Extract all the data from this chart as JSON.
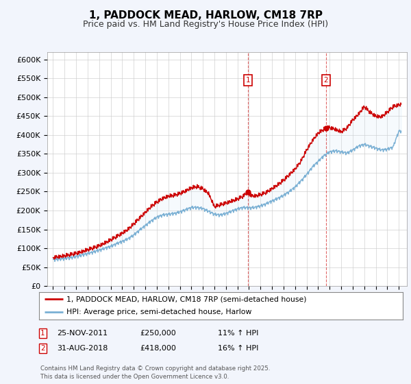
{
  "title": "1, PADDOCK MEAD, HARLOW, CM18 7RP",
  "subtitle": "Price paid vs. HM Land Registry's House Price Index (HPI)",
  "ylim": [
    0,
    620000
  ],
  "yticks": [
    0,
    50000,
    100000,
    150000,
    200000,
    250000,
    300000,
    350000,
    400000,
    450000,
    500000,
    550000,
    600000
  ],
  "ytick_labels": [
    "£0",
    "£50K",
    "£100K",
    "£150K",
    "£200K",
    "£250K",
    "£300K",
    "£350K",
    "£400K",
    "£450K",
    "£500K",
    "£550K",
    "£600K"
  ],
  "line1_color": "#cc0000",
  "line2_color": "#7ab0d4",
  "fill_color": "#d0e4f7",
  "background_color": "#f2f5fc",
  "plot_bg_color": "#ffffff",
  "grid_color": "#cccccc",
  "legend1_label": "1, PADDOCK MEAD, HARLOW, CM18 7RP (semi-detached house)",
  "legend2_label": "HPI: Average price, semi-detached house, Harlow",
  "event1_date": "25-NOV-2011",
  "event1_price": "£250,000",
  "event1_hpi": "11% ↑ HPI",
  "event2_date": "31-AUG-2018",
  "event2_price": "£418,000",
  "event2_hpi": "16% ↑ HPI",
  "footer": "Contains HM Land Registry data © Crown copyright and database right 2025.\nThis data is licensed under the Open Government Licence v3.0.",
  "event1_x": 2011.92,
  "event2_x": 2018.67,
  "event1_y_price": 250000,
  "event2_y_price": 418000,
  "xlim_start": 1994.5,
  "xlim_end": 2025.7,
  "hpi_t": [
    1995.0,
    1995.5,
    1996.0,
    1996.5,
    1997.0,
    1997.5,
    1998.0,
    1998.5,
    1999.0,
    1999.5,
    2000.0,
    2000.5,
    2001.0,
    2001.5,
    2002.0,
    2002.5,
    2003.0,
    2003.5,
    2004.0,
    2004.5,
    2005.0,
    2005.5,
    2006.0,
    2006.5,
    2007.0,
    2007.5,
    2008.0,
    2008.5,
    2009.0,
    2009.5,
    2010.0,
    2010.5,
    2011.0,
    2011.5,
    2012.0,
    2012.5,
    2013.0,
    2013.5,
    2014.0,
    2014.5,
    2015.0,
    2015.5,
    2016.0,
    2016.5,
    2017.0,
    2017.5,
    2018.0,
    2018.5,
    2019.0,
    2019.5,
    2020.0,
    2020.5,
    2021.0,
    2021.5,
    2022.0,
    2022.5,
    2023.0,
    2023.5,
    2024.0,
    2024.5,
    2025.0
  ],
  "hpi_v": [
    70000,
    71000,
    73000,
    75000,
    78000,
    82000,
    86000,
    90000,
    95000,
    100000,
    105000,
    112000,
    118000,
    125000,
    135000,
    148000,
    160000,
    172000,
    182000,
    188000,
    190000,
    192000,
    196000,
    202000,
    208000,
    208000,
    205000,
    198000,
    190000,
    188000,
    192000,
    198000,
    204000,
    208000,
    207000,
    208000,
    212000,
    218000,
    225000,
    232000,
    240000,
    250000,
    262000,
    278000,
    295000,
    315000,
    330000,
    345000,
    355000,
    358000,
    355000,
    352000,
    360000,
    370000,
    375000,
    370000,
    365000,
    360000,
    362000,
    368000,
    410000
  ],
  "price_t": [
    1995.0,
    1995.5,
    1996.0,
    1996.5,
    1997.0,
    1997.5,
    1998.0,
    1998.5,
    1999.0,
    1999.5,
    2000.0,
    2000.5,
    2001.0,
    2001.5,
    2002.0,
    2002.5,
    2003.0,
    2003.5,
    2004.0,
    2004.5,
    2005.0,
    2005.5,
    2006.0,
    2006.5,
    2007.0,
    2007.5,
    2008.0,
    2008.5,
    2009.0,
    2009.5,
    2010.0,
    2010.5,
    2011.0,
    2011.5,
    2011.92,
    2012.0,
    2012.5,
    2013.0,
    2013.5,
    2014.0,
    2014.5,
    2015.0,
    2015.5,
    2016.0,
    2016.5,
    2017.0,
    2017.5,
    2018.0,
    2018.67,
    2019.0,
    2019.5,
    2020.0,
    2020.5,
    2021.0,
    2021.5,
    2022.0,
    2022.5,
    2023.0,
    2023.5,
    2024.0,
    2024.5,
    2025.0
  ],
  "price_v": [
    76000,
    78000,
    80000,
    83000,
    87000,
    91000,
    96000,
    101000,
    107000,
    114000,
    122000,
    131000,
    140000,
    150000,
    164000,
    180000,
    195000,
    210000,
    222000,
    232000,
    238000,
    240000,
    245000,
    252000,
    260000,
    263000,
    258000,
    245000,
    210000,
    215000,
    220000,
    225000,
    230000,
    238000,
    250000,
    242000,
    238000,
    242000,
    248000,
    258000,
    268000,
    280000,
    295000,
    310000,
    330000,
    360000,
    385000,
    405000,
    418000,
    420000,
    415000,
    408000,
    418000,
    440000,
    455000,
    475000,
    460000,
    450000,
    448000,
    460000,
    475000,
    480000
  ]
}
